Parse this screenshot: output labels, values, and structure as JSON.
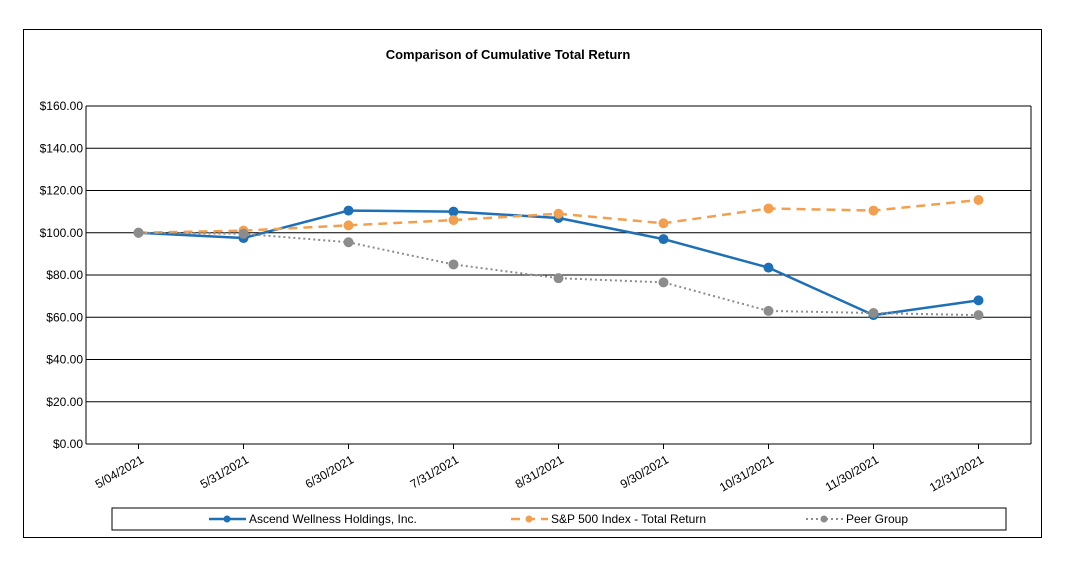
{
  "chart_data": {
    "type": "line",
    "title": "Comparison of Cumulative Total Return",
    "categories": [
      "5/04/2021",
      "5/31/2021",
      "6/30/2021",
      "7/31/2021",
      "8/31/2021",
      "9/30/2021",
      "10/31/2021",
      "11/30/2021",
      "12/31/2021"
    ],
    "ylim": [
      0,
      160
    ],
    "yticks": [
      "$0.00",
      "$20.00",
      "$40.00",
      "$60.00",
      "$80.00",
      "$100.00",
      "$120.00",
      "$140.00",
      "$160.00"
    ],
    "grid": true,
    "legend_position": "bottom",
    "series": [
      {
        "name": "Ascend Wellness Holdings, Inc.",
        "color": "#1f6fb5",
        "style": "solid",
        "values": [
          100.0,
          97.5,
          110.5,
          110.0,
          107.0,
          97.0,
          83.5,
          61.0,
          68.0
        ]
      },
      {
        "name": "S&P 500 Index - Total Return",
        "color": "#f0a050",
        "style": "dashed",
        "values": [
          100.0,
          101.0,
          103.5,
          106.0,
          109.0,
          104.5,
          111.5,
          110.5,
          115.5
        ]
      },
      {
        "name": "Peer Group",
        "color": "#8c8c8c",
        "style": "dotted",
        "values": [
          100.0,
          99.5,
          95.5,
          85.0,
          78.5,
          76.5,
          63.0,
          62.0,
          61.0
        ]
      }
    ]
  }
}
